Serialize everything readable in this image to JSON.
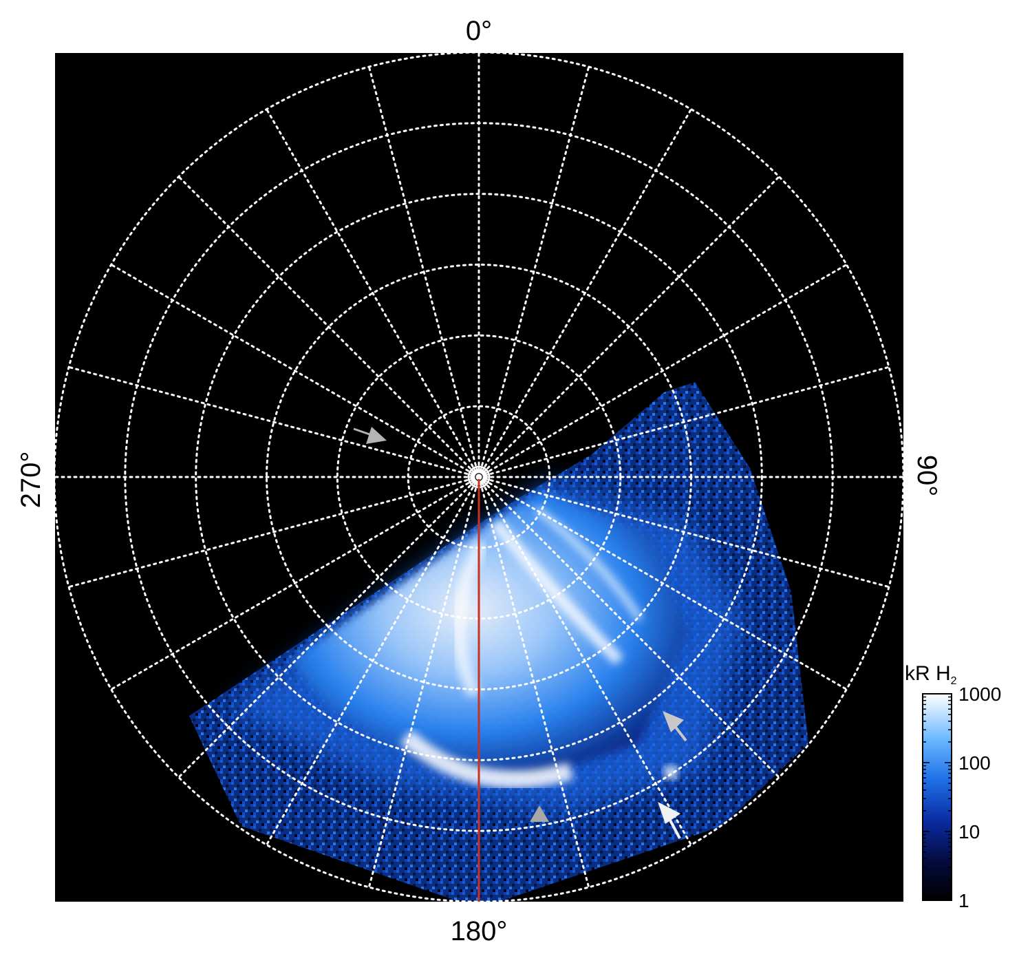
{
  "figure": {
    "kind": "polar auroral projection",
    "colors": {
      "background": "#000000",
      "grid": "#ffffff",
      "meridian_line": "#c8321e",
      "arrow_gray": "#b4b4b4",
      "arrow_white": "#f2f2f2",
      "emission_low": "#020410",
      "emission_mid": "#1e78f0",
      "emission_high": "#ffffff"
    },
    "longitude_labels": {
      "top": "0°",
      "right": "90°",
      "bottom": "180°",
      "left": "270°"
    },
    "grid": {
      "style": "dotted",
      "meridian_spacing_deg": 15,
      "latitude_circles": 6
    },
    "colorbar": {
      "title": "kR H",
      "title_subscript": "2",
      "scale": "log",
      "range": [
        1,
        1000
      ],
      "tick_labels": [
        "1000",
        "100",
        "10",
        "1"
      ],
      "tick_values": [
        1000,
        100,
        10,
        1
      ]
    },
    "annotations": [
      {
        "name": "arrow-upper-left",
        "color": "gray"
      },
      {
        "name": "arrow-right-upper",
        "color": "gray"
      },
      {
        "name": "arrow-right-lower",
        "color": "white"
      },
      {
        "name": "triangle-bottom",
        "color": "gray"
      }
    ]
  }
}
